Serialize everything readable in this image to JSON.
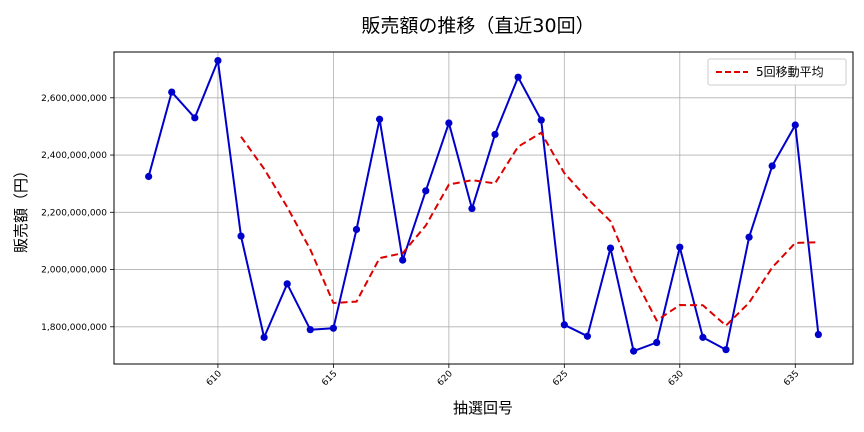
{
  "chart_data": {
    "type": "line",
    "title": "販売額の推移（直近30回）",
    "xlabel": "抽選回号",
    "ylabel": "販売額（円）",
    "xlim": [
      605.5,
      637.5
    ],
    "ylim": [
      1670000000,
      2760000000
    ],
    "x_ticks": [
      610,
      615,
      620,
      625,
      630,
      635
    ],
    "y_ticks": [
      1800000000,
      2000000000,
      2200000000,
      2400000000,
      2600000000
    ],
    "y_tick_labels": [
      "1,800,000,000",
      "2,000,000,000",
      "2,200,000,000",
      "2,400,000,000",
      "2,600,000,000"
    ],
    "grid": true,
    "legend_position": "top-right",
    "series": [
      {
        "role": "sales",
        "style": "solid-markers",
        "color": "#0000cc",
        "x": [
          607,
          608,
          609,
          610,
          611,
          612,
          613,
          614,
          615,
          616,
          617,
          618,
          619,
          620,
          621,
          622,
          623,
          624,
          625,
          626,
          627,
          628,
          629,
          630,
          631,
          632,
          633,
          634,
          635,
          636
        ],
        "values": [
          2325000000,
          2620000000,
          2530000000,
          2730000000,
          2117000000,
          1763000000,
          1950000000,
          1790000000,
          1795000000,
          2140000000,
          2525000000,
          2033000000,
          2275000000,
          2512000000,
          2213000000,
          2472000000,
          2672000000,
          2522000000,
          1807000000,
          1767000000,
          2075000000,
          1715000000,
          1745000000,
          2078000000,
          1763000000,
          1720000000,
          2113000000,
          2362000000,
          2505000000,
          1773000000
        ]
      },
      {
        "name": "5回移動平均",
        "style": "dashed",
        "color": "#dd0000",
        "x": [
          611,
          612,
          613,
          614,
          615,
          616,
          617,
          618,
          619,
          620,
          621,
          622,
          623,
          624,
          625,
          626,
          627,
          628,
          629,
          630,
          631,
          632,
          633,
          634,
          635,
          636
        ],
        "values": [
          2464000000,
          2352000000,
          2218000000,
          2070000000,
          1883000000,
          1888000000,
          2040000000,
          2057000000,
          2154000000,
          2297000000,
          2312000000,
          2301000000,
          2429000000,
          2478000000,
          2337000000,
          2248000000,
          2169000000,
          1977000000,
          1822000000,
          1876000000,
          1875000000,
          1804000000,
          1884000000,
          2007000000,
          2093000000,
          2095000000
        ]
      }
    ]
  }
}
